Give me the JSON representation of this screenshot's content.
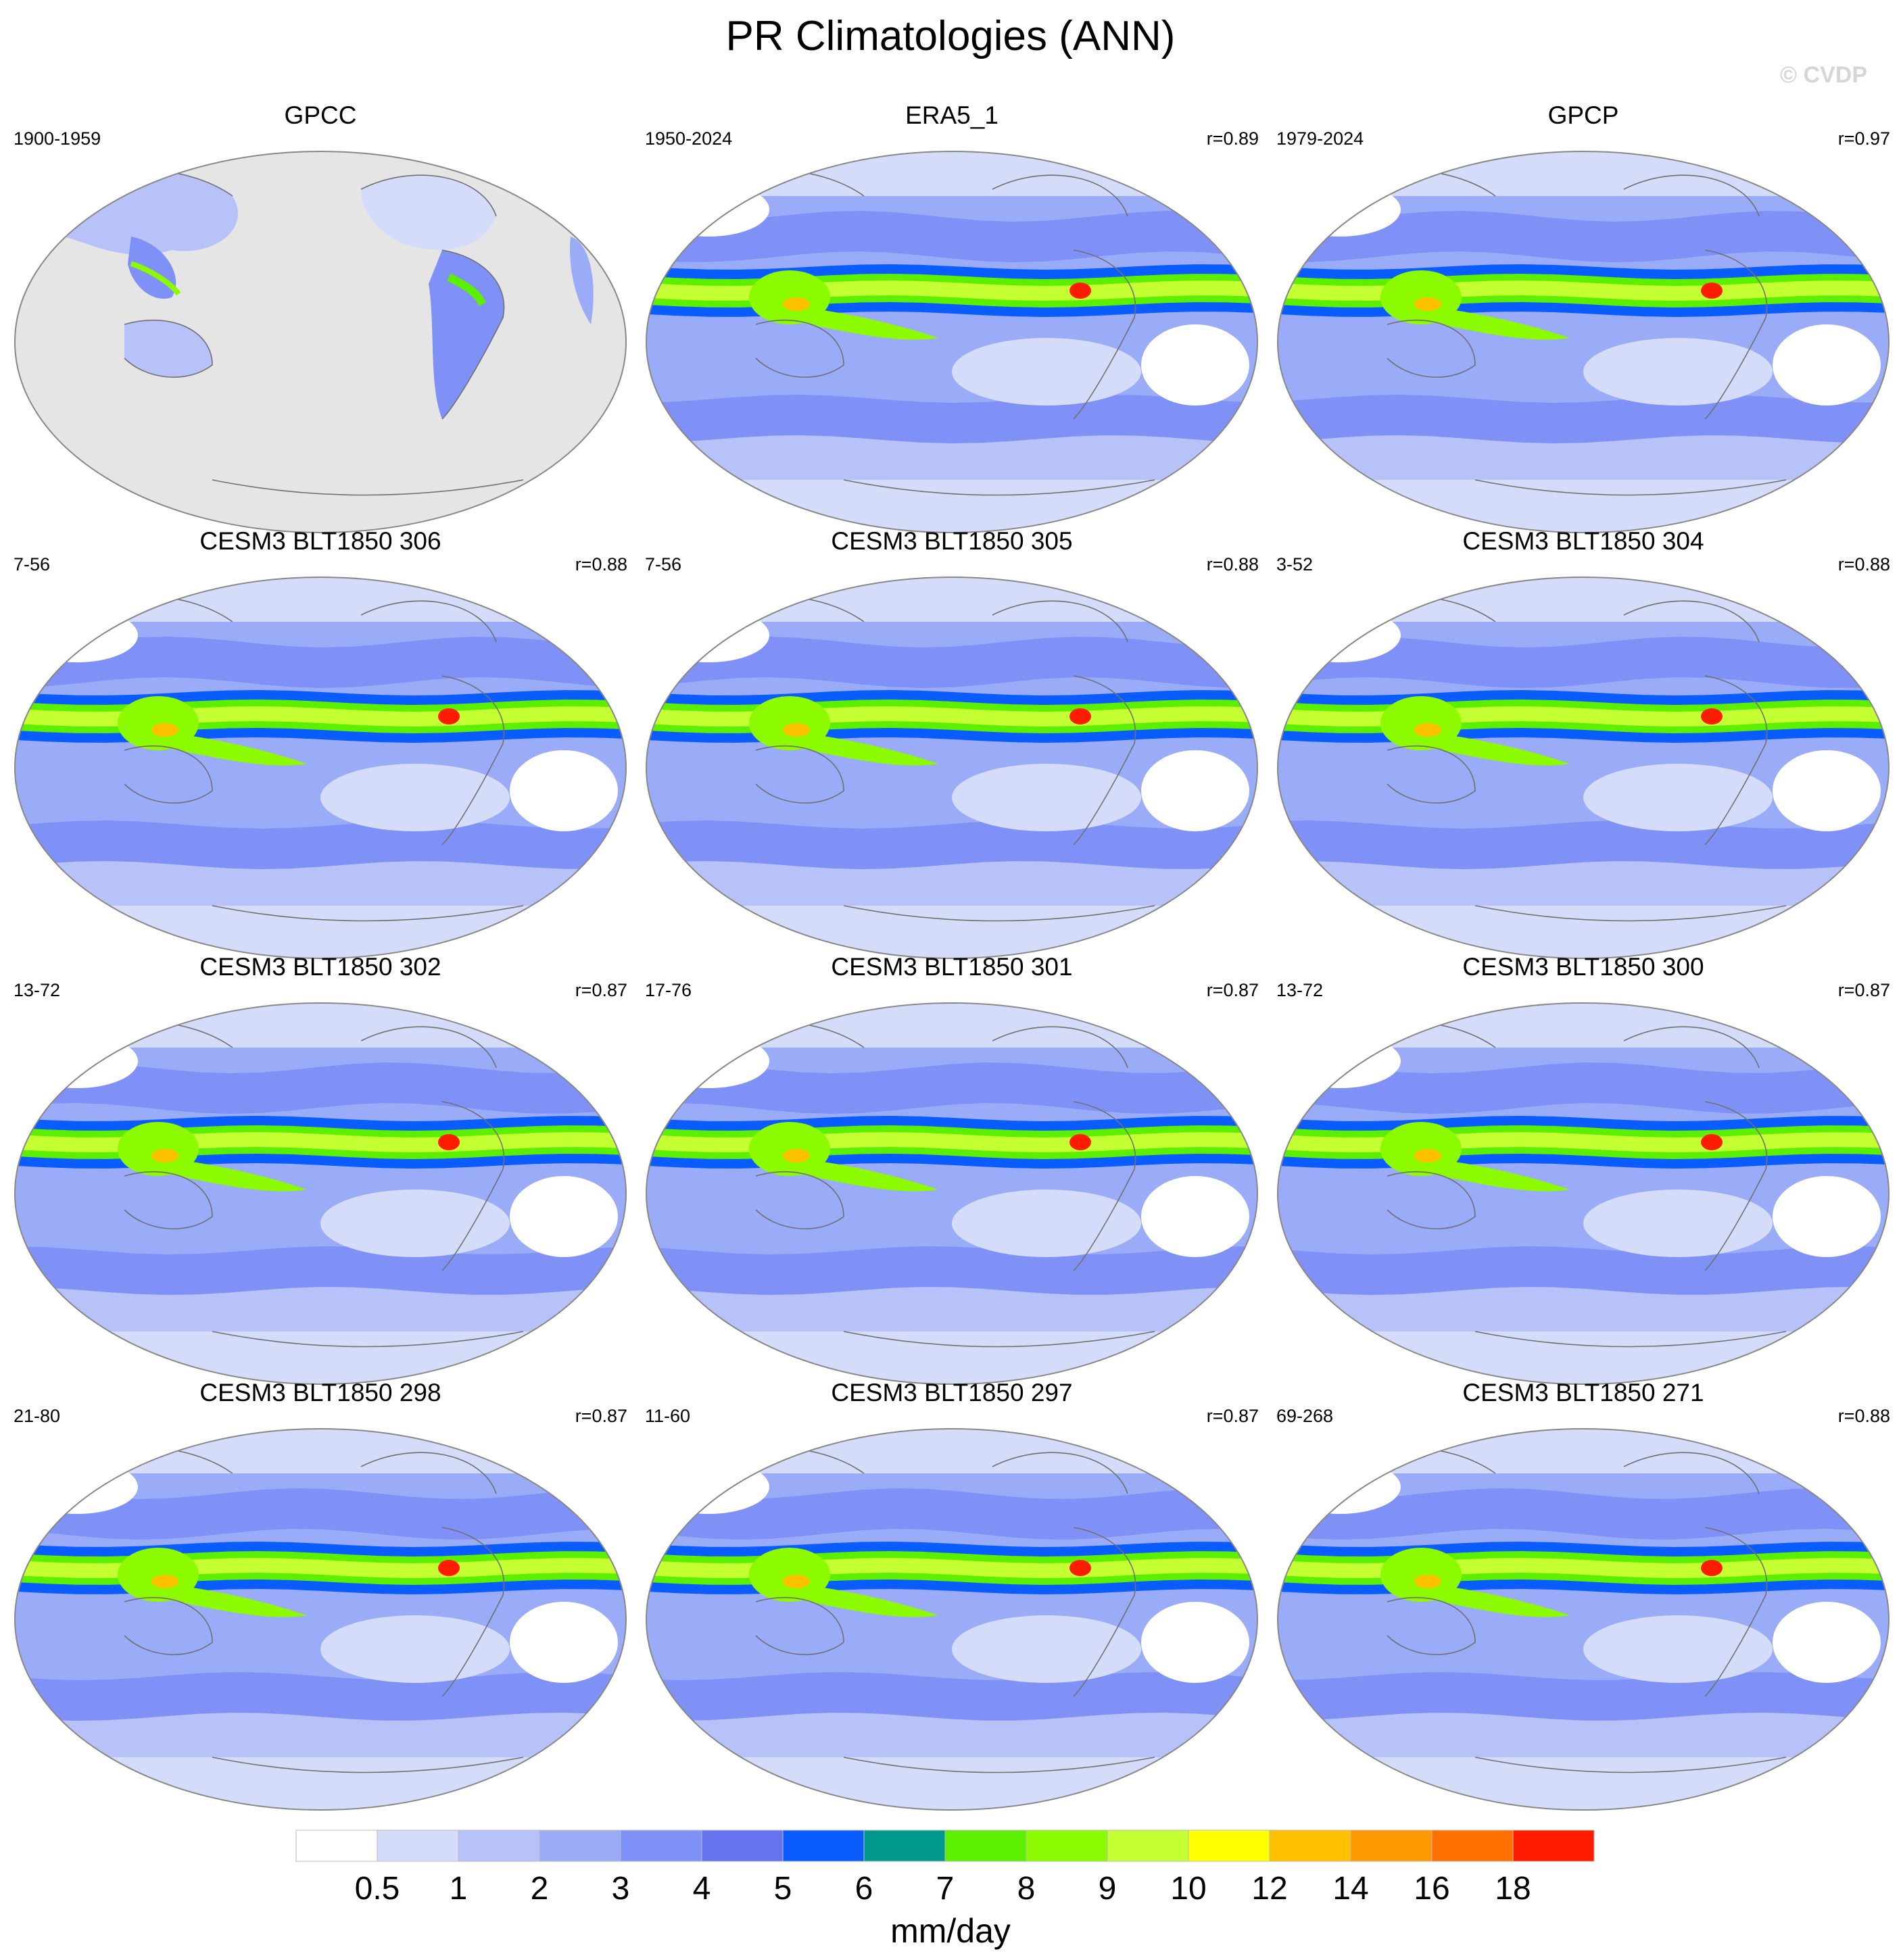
{
  "title": "PR Climatologies (ANN)",
  "copyright": "© CVDP",
  "panels": [
    {
      "title": "GPCC",
      "period": "1900-1959",
      "corr": "",
      "land_only": true
    },
    {
      "title": "ERA5_1",
      "period": "1950-2024",
      "corr": "r=0.89",
      "land_only": false
    },
    {
      "title": "GPCP",
      "period": "1979-2024",
      "corr": "r=0.97",
      "land_only": false
    },
    {
      "title": "CESM3 BLT1850 306",
      "period": "7-56",
      "corr": "r=0.88",
      "land_only": false
    },
    {
      "title": "CESM3 BLT1850 305",
      "period": "7-56",
      "corr": "r=0.88",
      "land_only": false
    },
    {
      "title": "CESM3 BLT1850 304",
      "period": "3-52",
      "corr": "r=0.88",
      "land_only": false
    },
    {
      "title": "CESM3 BLT1850 302",
      "period": "13-72",
      "corr": "r=0.87",
      "land_only": false
    },
    {
      "title": "CESM3 BLT1850 301",
      "period": "17-76",
      "corr": "r=0.87",
      "land_only": false
    },
    {
      "title": "CESM3 BLT1850 300",
      "period": "13-72",
      "corr": "r=0.87",
      "land_only": false
    },
    {
      "title": "CESM3 BLT1850 298",
      "period": "21-80",
      "corr": "r=0.87",
      "land_only": false
    },
    {
      "title": "CESM3 BLT1850 297",
      "period": "11-60",
      "corr": "r=0.87",
      "land_only": false
    },
    {
      "title": "CESM3 BLT1850 271",
      "period": "69-268",
      "corr": "r=0.88",
      "land_only": false
    }
  ],
  "colorbar": {
    "unit": "mm/day",
    "levels": [
      "0.5",
      "1",
      "2",
      "3",
      "4",
      "5",
      "6",
      "7",
      "8",
      "9",
      "10",
      "12",
      "14",
      "16",
      "18"
    ],
    "colors": [
      "#ffffff",
      "#d5dcfa",
      "#b7c2f9",
      "#9aabf8",
      "#7f90f6",
      "#6673ee",
      "#0a5cff",
      "#00998c",
      "#5cf000",
      "#8cfa00",
      "#c3ff33",
      "#ffff00",
      "#ffc000",
      "#ff9900",
      "#ff7000",
      "#ff1c00"
    ]
  },
  "map_colors": {
    "outline": "#888888",
    "missing": "#e5e5e5",
    "coast": "#707070"
  }
}
